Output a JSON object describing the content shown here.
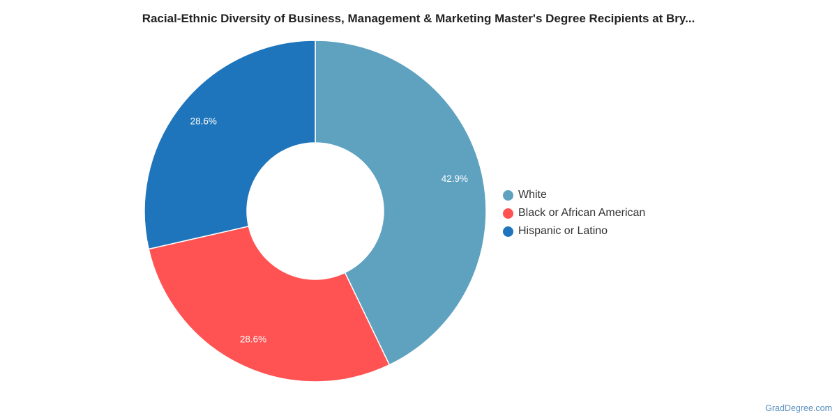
{
  "chart_data": {
    "type": "pie",
    "title": "Racial-Ethnic Diversity of Business, Management & Marketing Master's Degree Recipients at Bry...",
    "categories": [
      "White",
      "Black or African American",
      "Hispanic or Latino"
    ],
    "values": [
      42.9,
      28.6,
      28.6
    ],
    "value_labels": [
      "42.9%",
      "28.6%",
      "28.6%"
    ],
    "colors": [
      "#5ea2c0",
      "#ff5252",
      "#1f75bb"
    ],
    "donut": true,
    "legend": "right"
  },
  "source": {
    "text": "GradDegree.com"
  }
}
